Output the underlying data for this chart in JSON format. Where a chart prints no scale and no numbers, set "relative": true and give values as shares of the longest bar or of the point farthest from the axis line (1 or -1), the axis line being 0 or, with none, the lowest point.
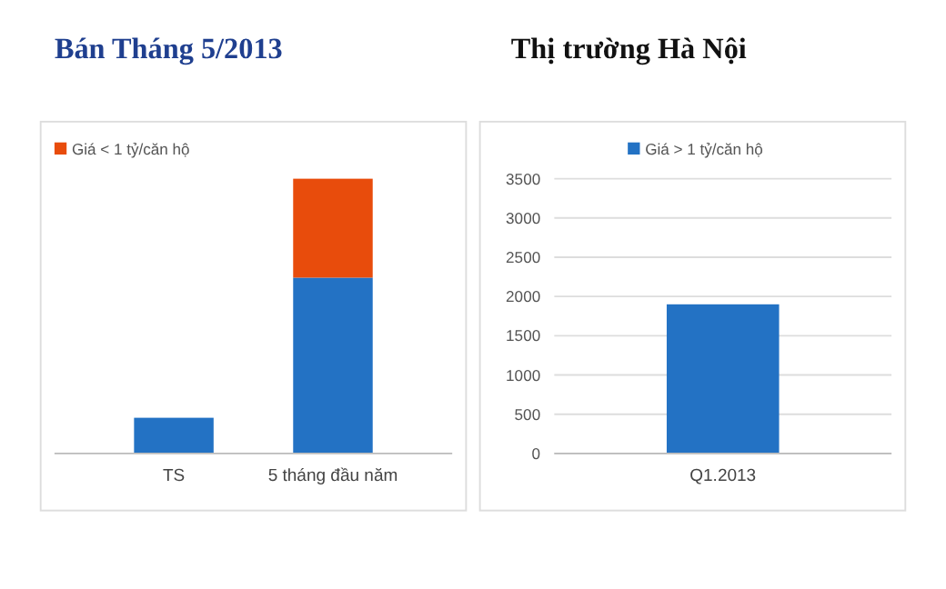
{
  "chart_data": [
    {
      "type": "bar",
      "title": "Bán Tháng 5/2013",
      "categories": [
        "TS",
        "5 tháng đầu năm"
      ],
      "stacked": true,
      "relative": true,
      "legend": "top left",
      "series": [
        {
          "color": "#2372c4",
          "values": [
            0.13,
            0.64
          ]
        },
        {
          "name": "Giá < 1 tỷ/căn hộ",
          "color": "#e84c0c",
          "values": [
            null,
            0.36
          ]
        }
      ]
    },
    {
      "type": "bar",
      "title": "Thị trường Hà Nội",
      "categories": [
        "Q1.2013"
      ],
      "ylim": [
        0,
        3500
      ],
      "yticks": [
        0,
        500,
        1000,
        1500,
        2000,
        2500,
        3000,
        3500
      ],
      "grid": "y",
      "legend": "top",
      "series": [
        {
          "name": "Giá > 1 tỷ/căn hộ",
          "color": "#2372c4",
          "values": [
            1900
          ]
        }
      ]
    }
  ]
}
